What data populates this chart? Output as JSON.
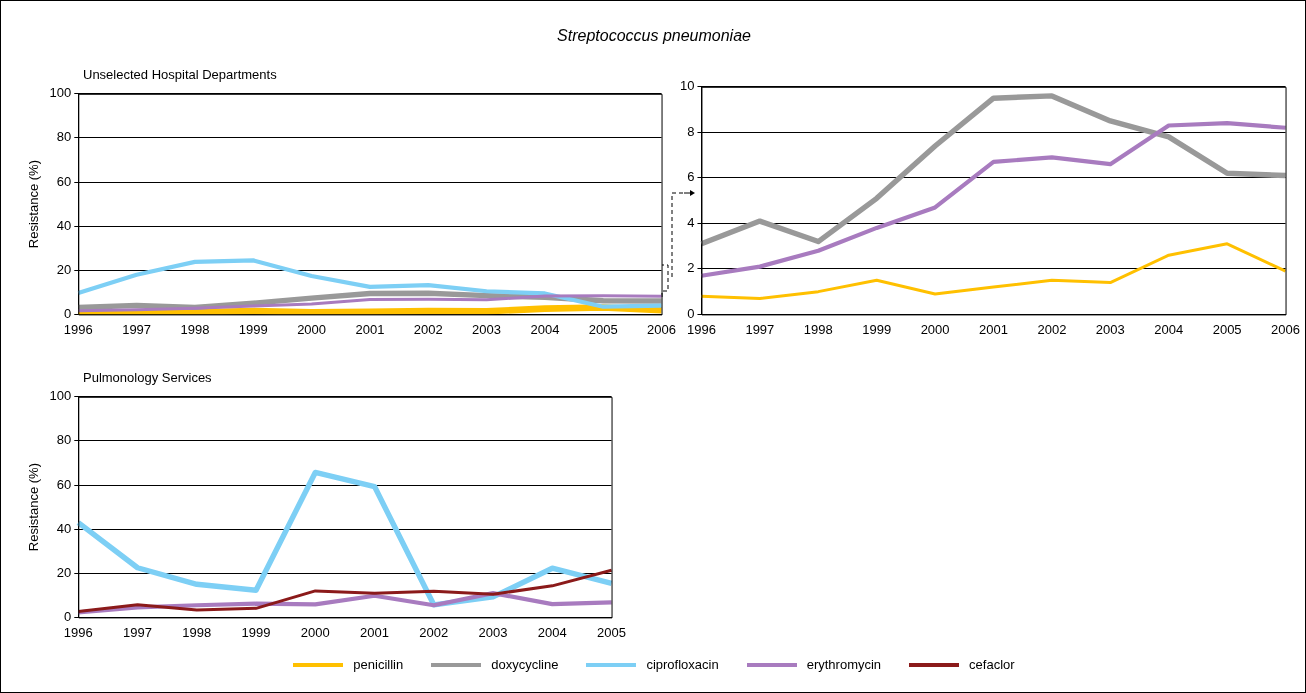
{
  "chart_data": [
    {
      "type": "line",
      "title": "Streptococcus pneumoniae",
      "subtitle": "Unselected Hospital Departments",
      "ylabel": "Resistance (%)",
      "categories": [
        "1996",
        "1997",
        "1998",
        "1999",
        "2000",
        "2001",
        "2002",
        "2003",
        "2004",
        "2005",
        "2006"
      ],
      "ylim": [
        0,
        100
      ],
      "yticks": [
        0,
        20,
        40,
        60,
        80,
        100
      ],
      "grid": "y",
      "marker": "none",
      "legend": "bottom",
      "series": [
        {
          "name": "penicillin",
          "color": "#ffc000",
          "values": [
            0.8,
            0.7,
            1.0,
            1.5,
            0.9,
            1.2,
            1.5,
            1.4,
            2.6,
            3.1,
            1.9
          ]
        },
        {
          "name": "doxycycline",
          "color": "#999999",
          "values": [
            3.1,
            4.1,
            3.2,
            5.1,
            7.4,
            9.5,
            9.6,
            8.5,
            7.8,
            6.2,
            6.1
          ]
        },
        {
          "name": "ciprofloxacin",
          "color": "#7dcff5",
          "values": [
            9.7,
            18,
            23.8,
            24.5,
            17.4,
            12.5,
            13.3,
            10.5,
            9.5,
            3.5,
            4
          ]
        },
        {
          "name": "erythromycin",
          "color": "#a87bbf",
          "values": [
            1.7,
            2.1,
            2.8,
            3.8,
            4.7,
            6.7,
            6.9,
            6.6,
            8.3,
            8.4,
            8.2
          ]
        }
      ]
    },
    {
      "type": "line",
      "categories": [
        "1996",
        "1997",
        "1998",
        "1999",
        "2000",
        "2001",
        "2002",
        "2003",
        "2004",
        "2005",
        "2006"
      ],
      "ylim": [
        0,
        10
      ],
      "yticks": [
        0,
        2,
        4,
        6,
        8,
        10
      ],
      "grid": "y",
      "marker": "none",
      "series": [
        {
          "color": "#999999",
          "values": [
            3.1,
            4.1,
            3.2,
            5.1,
            7.4,
            9.5,
            9.6,
            8.5,
            7.8,
            6.2,
            6.1
          ]
        },
        {
          "color": "#a87bbf",
          "values": [
            1.7,
            2.1,
            2.8,
            3.8,
            4.7,
            6.7,
            6.9,
            6.6,
            8.3,
            8.4,
            8.2
          ]
        },
        {
          "color": "#ffc000",
          "values": [
            0.8,
            0.7,
            1.0,
            1.5,
            0.9,
            1.2,
            1.5,
            1.4,
            2.6,
            3.1,
            1.9
          ]
        }
      ]
    },
    {
      "type": "line",
      "subtitle": "Pulmonology Services",
      "ylabel": "Resistance (%)",
      "categories": [
        "1996",
        "1997",
        "1998",
        "1999",
        "2000",
        "2001",
        "2002",
        "2003",
        "2004",
        "2005"
      ],
      "ylim": [
        0,
        100
      ],
      "yticks": [
        0,
        20,
        40,
        60,
        80,
        100
      ],
      "grid": "y",
      "marker": "none",
      "legend": "bottom",
      "series": [
        {
          "color": "#7dcff5",
          "values": [
            43,
            22.5,
            15,
            12.3,
            65.7,
            59.3,
            5.7,
            9.3,
            22.3,
            15.4
          ]
        },
        {
          "color": "#a87bbf",
          "values": [
            2.3,
            4.5,
            5.5,
            6.2,
            5.9,
            9.8,
            5.5,
            11,
            6,
            6.8
          ]
        },
        {
          "name": "cefaclor",
          "color": "#8b1a1a",
          "values": [
            2.7,
            5.7,
            3.4,
            4.1,
            12,
            10.9,
            11.8,
            10.5,
            14.3,
            21.4
          ]
        }
      ]
    }
  ]
}
